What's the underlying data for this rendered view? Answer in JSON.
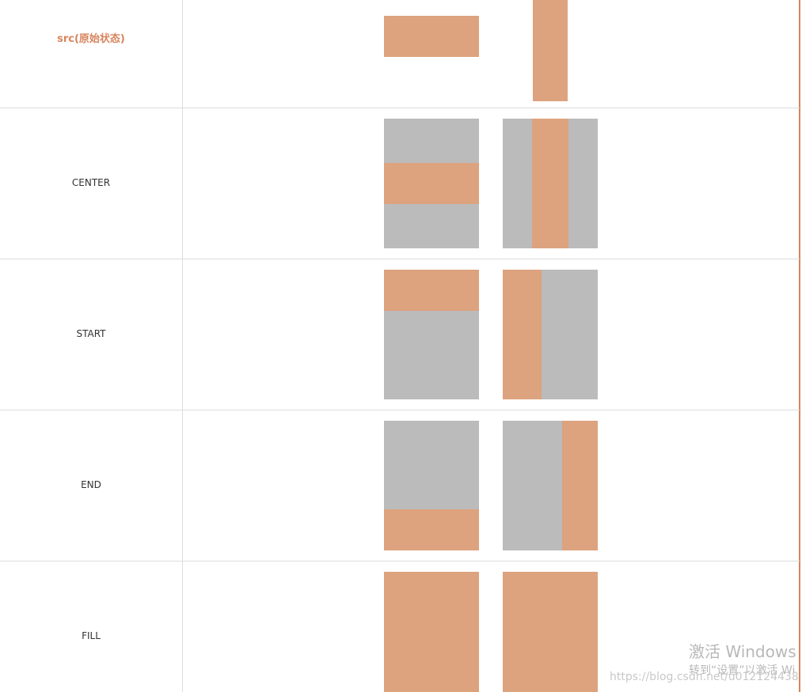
{
  "rows": [
    {
      "label": "src(原始状态)"
    },
    {
      "label": "CENTER"
    },
    {
      "label": "START"
    },
    {
      "label": "END"
    },
    {
      "label": "FILL"
    }
  ],
  "colors": {
    "gray": "#bbbbbb",
    "orange": "#dda27e",
    "accent": "#d9845d"
  },
  "watermark": {
    "line1": "激活 Windows",
    "line2": "转到“设置”以激活 Wi",
    "url": "https://blog.csdn.net/u012124438"
  }
}
